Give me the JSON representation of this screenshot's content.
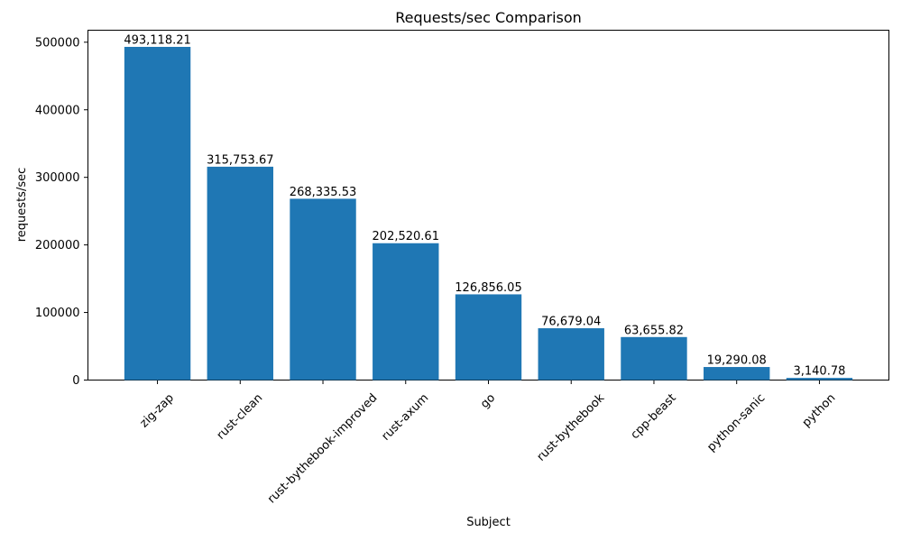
{
  "chart_data": {
    "type": "bar",
    "title": "Requests/sec Comparison",
    "xlabel": "Subject",
    "ylabel": "requests/sec",
    "categories": [
      "zig-zap",
      "rust-clean",
      "rust-bythebook-improved",
      "rust-axum",
      "go",
      "rust-bythebook",
      "cpp-beast",
      "python-sanic",
      "python"
    ],
    "values": [
      493118.21,
      315753.67,
      268335.53,
      202520.61,
      126856.05,
      76679.04,
      63655.82,
      19290.08,
      3140.78
    ],
    "bar_labels": [
      "493,118.21",
      "315,753.67",
      "268,335.53",
      "202,520.61",
      "126,856.05",
      "76,679.04",
      "63,655.82",
      "19,290.08",
      "3,140.78"
    ],
    "yticks": [
      0,
      100000,
      200000,
      300000,
      400000,
      500000
    ],
    "ytick_labels": [
      "0",
      "100000",
      "200000",
      "300000",
      "400000",
      "500000"
    ],
    "ylim": [
      0,
      517774
    ],
    "xlim": [
      -0.84,
      8.84
    ],
    "bar_width": 0.8,
    "bar_color": "#1f77b4",
    "spine_color": "#000000",
    "text_color": "#000000",
    "grid": false,
    "legend": false,
    "xtick_rotation_deg": 45
  }
}
